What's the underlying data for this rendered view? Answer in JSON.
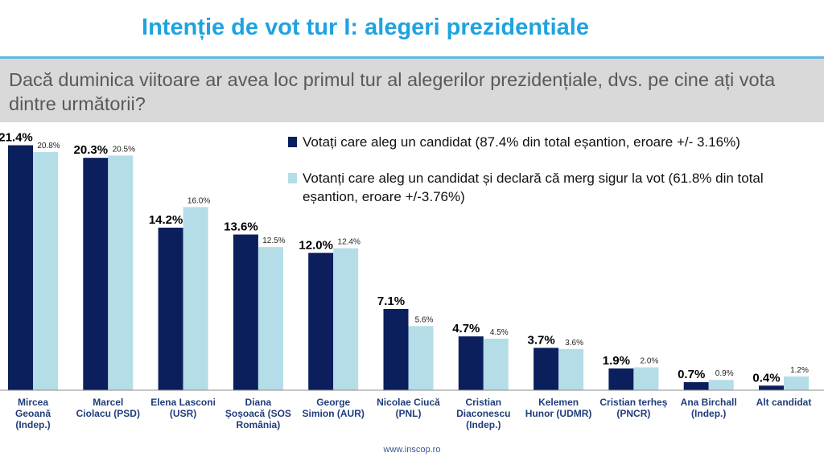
{
  "title": "Intenție de vot tur I: alegeri prezidentiale",
  "question": "Dacă duminica viitoare ar avea loc primul tur al alegerilor prezidențiale, dvs. pe cine ați vota dintre următorii?",
  "footer": "www.inscop.ro",
  "colors": {
    "series1": "#0b1f5c",
    "series2": "#b4dde8",
    "title": "#1fa3e0"
  },
  "chart_data": {
    "type": "bar",
    "title": "Intenție de vot tur I: alegeri prezidentiale",
    "xlabel": "",
    "ylabel": "",
    "ylim": [
      0,
      22
    ],
    "grid": false,
    "legend_position": "top-right",
    "categories": [
      [
        "Mircea",
        "Geoană",
        "(Indep.)"
      ],
      [
        "Marcel",
        "Ciolacu (PSD)"
      ],
      [
        "Elena Lasconi",
        "(USR)"
      ],
      [
        "Diana",
        "Șoșoacă (SOS",
        "România)"
      ],
      [
        "George",
        "Simion (AUR)"
      ],
      [
        "Nicolae   Ciucă",
        "(PNL)"
      ],
      [
        "Cristian",
        "Diaconescu",
        "(Indep.)"
      ],
      [
        "Kelemen",
        "Hunor (UDMR)"
      ],
      [
        "Cristian terheș",
        "(PNCR)"
      ],
      [
        "Ana Birchall",
        "(Indep.)"
      ],
      [
        "Alt candidat"
      ]
    ],
    "series": [
      {
        "name": "Votați care aleg un candidat (87.4% din total eșantion, eroare +/- 3.16%)",
        "values": [
          21.4,
          20.3,
          14.2,
          13.6,
          12.0,
          7.1,
          4.7,
          3.7,
          1.9,
          0.7,
          0.4
        ],
        "labels": [
          "21.4%",
          "20.3%",
          "14.2%",
          "13.6%",
          "12.0%",
          "7.1%",
          "4.7%",
          "3.7%",
          "1.9%",
          "0.7%",
          "0.4%"
        ]
      },
      {
        "name": "Votanți care aleg un candidat și declară că merg sigur la vot (61.8% din total eșantion, eroare +/-3.76%)",
        "values": [
          20.8,
          20.5,
          16.0,
          12.5,
          12.4,
          5.6,
          4.5,
          3.6,
          2.0,
          0.9,
          1.2
        ],
        "labels": [
          "20.8%",
          "20.5%",
          "16.0%",
          "12.5%",
          "12.4%",
          "5.6%",
          "4.5%",
          "3.6%",
          "2.0%",
          "0.9%",
          "1.2%"
        ]
      }
    ]
  }
}
